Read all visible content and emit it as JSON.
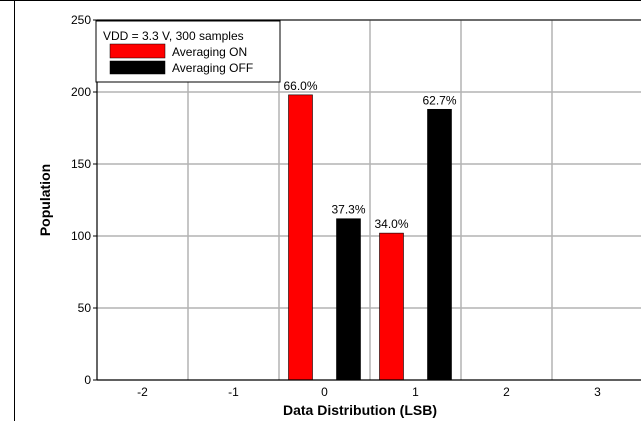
{
  "chart_data": {
    "type": "bar",
    "title": "",
    "xlabel": "Data Distribution (LSB)",
    "ylabel": "Population",
    "categories": [
      "-2",
      "-1",
      "0",
      "1",
      "2",
      "3"
    ],
    "series": [
      {
        "name": "Averaging ON",
        "color": "#ff0000",
        "values": [
          0,
          0,
          198,
          102,
          0,
          0
        ]
      },
      {
        "name": "Averaging OFF",
        "color": "#000000",
        "values": [
          0,
          0,
          112,
          188,
          0,
          0
        ]
      }
    ],
    "data_labels": [
      {
        "series": 0,
        "category": "0",
        "text": "66.0%"
      },
      {
        "series": 1,
        "category": "0",
        "text": "37.3%"
      },
      {
        "series": 0,
        "category": "1",
        "text": "34.0%"
      },
      {
        "series": 1,
        "category": "1",
        "text": "62.7%"
      }
    ],
    "ylim": [
      0,
      250
    ],
    "y_ticks": [
      "0",
      "50",
      "100",
      "150",
      "200",
      "250"
    ],
    "grid": true,
    "legend": {
      "title": "VDD = 3.3 V, 300 samples",
      "placement": "top-left"
    }
  }
}
